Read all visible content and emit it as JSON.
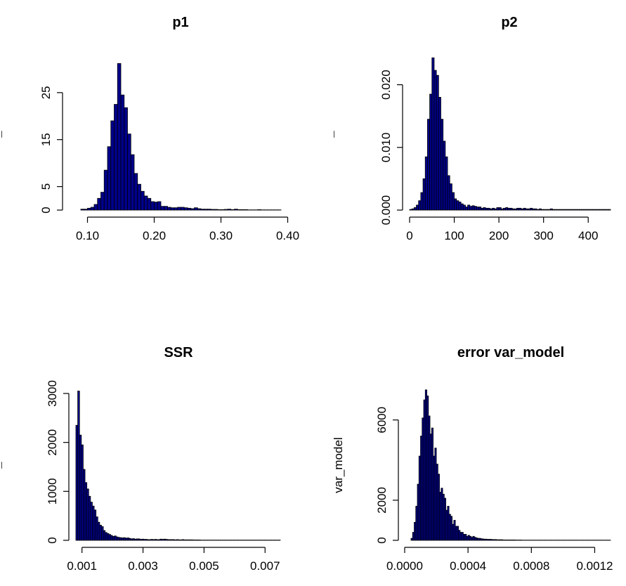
{
  "chart_data": [
    {
      "type": "bar",
      "title": "p1",
      "xlabel": "",
      "ylabel": "¯",
      "xlim": [
        0.09,
        0.39
      ],
      "ylim": [
        0,
        32
      ],
      "xticks": [
        0.1,
        0.2,
        0.3,
        0.4
      ],
      "xtick_labels": [
        "0.10",
        "0.20",
        "0.30",
        "0.40"
      ],
      "yticks": [
        0,
        5,
        15,
        25
      ],
      "ytick_labels": [
        "0",
        "5",
        "15",
        "25"
      ],
      "bin_start": 0.09,
      "bin_width": 0.005,
      "values": [
        0.2,
        0.2,
        0.4,
        0.6,
        1.2,
        2.5,
        3.8,
        8.5,
        13.5,
        19,
        22.5,
        31.2,
        24.5,
        21.8,
        16.2,
        11.8,
        7.8,
        5.5,
        4,
        3,
        2.5,
        1.8,
        1.7,
        1.8,
        0.8,
        0.8,
        0.6,
        0.5,
        0.5,
        0.6,
        0.6,
        0.5,
        0.4,
        0.3,
        0.5,
        0.3,
        0.2,
        0.2,
        0.2,
        0.15,
        0.15,
        0.1,
        0.1,
        0.15,
        0.2,
        0.1,
        0.2,
        0.1,
        0.1,
        0.1,
        0.05,
        0.05,
        0.05,
        0.1,
        0.05,
        0.05,
        0.05,
        0.05,
        0.05,
        0.05
      ]
    },
    {
      "type": "bar",
      "title": "p2",
      "xlabel": "",
      "ylabel": "¯",
      "xlim": [
        0,
        450
      ],
      "ylim": [
        0,
        0.025
      ],
      "xticks": [
        0,
        100,
        200,
        300,
        400
      ],
      "xtick_labels": [
        "0",
        "100",
        "200",
        "300",
        "400"
      ],
      "yticks": [
        0,
        0.01,
        0.02
      ],
      "ytick_labels": [
        "0.000",
        "0.010",
        "0.020"
      ],
      "bin_start": 0,
      "bin_width": 5,
      "values": [
        0.0001,
        0.0002,
        0.0004,
        0.0008,
        0.0015,
        0.0028,
        0.005,
        0.0085,
        0.0145,
        0.0185,
        0.0243,
        0.0223,
        0.0215,
        0.018,
        0.0145,
        0.011,
        0.0085,
        0.0055,
        0.0042,
        0.0028,
        0.0018,
        0.0015,
        0.0013,
        0.001,
        0.0008,
        0.0005,
        0.0008,
        0.0006,
        0.0007,
        0.0006,
        0.0005,
        0.0005,
        0.0003,
        0.0004,
        0.0003,
        0.0003,
        0.0002,
        0.0003,
        0.0002,
        0.0004,
        0.0004,
        0.0002,
        0.0003,
        0.0004,
        0.0003,
        0.0003,
        0.0002,
        0.0002,
        0.0003,
        0.0003,
        0.0002,
        0.0003,
        0.0002,
        0.0002,
        0.0003,
        0.0002,
        0.0002,
        0.0001,
        0.0002,
        0.0001,
        0.0001,
        0.0001,
        0.0001,
        0.0002,
        0.0001,
        0.0001,
        0.0001,
        0.0001,
        0.0001,
        0.0001,
        0.0001,
        0.0001,
        0.0001,
        0.0001,
        0.0001,
        0.0001,
        0.0001,
        0.0001,
        0.0001,
        0.0001,
        0.0001,
        0.0001,
        0.0001,
        0.0001,
        0.0001,
        0.0001,
        0.0001,
        0.0001,
        0.0001,
        0.0001
      ]
    },
    {
      "type": "bar",
      "title": "SSR",
      "xlabel": "",
      "ylabel": "¯",
      "xlim": [
        0.0008,
        0.0075
      ],
      "ylim": [
        0,
        3100
      ],
      "xticks": [
        0.001,
        0.003,
        0.005,
        0.007
      ],
      "xtick_labels": [
        "0.001",
        "0.003",
        "0.005",
        "0.007"
      ],
      "yticks": [
        0,
        1000,
        2000,
        3000
      ],
      "ytick_labels": [
        "0",
        "1000",
        "2000",
        "3000"
      ],
      "bin_start": 0.0008,
      "bin_width": 6e-05,
      "values": [
        2350,
        3050,
        2150,
        1950,
        1450,
        1180,
        1050,
        900,
        780,
        700,
        620,
        480,
        370,
        310,
        280,
        200,
        160,
        140,
        120,
        100,
        80,
        90,
        70,
        60,
        55,
        50,
        55,
        45,
        50,
        40,
        30,
        35,
        25,
        30,
        30,
        20,
        25,
        20,
        20,
        15,
        15,
        20,
        15,
        20,
        15,
        15,
        25,
        20,
        25,
        20,
        15,
        15,
        15,
        15,
        10,
        15,
        10,
        10,
        15,
        10,
        10,
        10,
        10,
        10,
        8,
        8,
        8,
        8,
        5,
        5,
        5,
        5,
        5,
        5,
        5,
        5,
        5,
        5,
        5,
        5,
        5,
        5,
        5,
        5,
        5,
        5,
        5,
        5,
        5,
        5,
        5,
        5,
        5,
        5,
        5,
        5,
        5,
        5,
        5,
        5,
        5,
        5,
        5,
        5,
        5,
        5,
        5,
        5,
        5,
        5,
        5,
        5
      ]
    },
    {
      "type": "bar",
      "title": "error var_model",
      "xlabel": "",
      "ylabel": "var_model",
      "xlim": [
        4e-05,
        0.0013
      ],
      "ylim": [
        0,
        7600
      ],
      "xticks": [
        0.0,
        0.0004,
        0.0008,
        0.0012
      ],
      "xtick_labels": [
        "0.0000",
        "0.0004",
        "0.0008",
        "0.0012"
      ],
      "yticks": [
        0,
        2000,
        6000
      ],
      "ytick_labels": [
        "0",
        "2000",
        "6000"
      ],
      "bin_start": 4e-05,
      "bin_width": 1e-05,
      "values": [
        100,
        400,
        900,
        1700,
        2800,
        4200,
        5200,
        6100,
        7000,
        7500,
        7200,
        6200,
        5300,
        5600,
        4200,
        4600,
        3800,
        3300,
        2400,
        2600,
        2300,
        2100,
        1500,
        1700,
        1300,
        1200,
        800,
        1000,
        700,
        700,
        500,
        400,
        400,
        300,
        300,
        200,
        250,
        200,
        150,
        200,
        150,
        120,
        100,
        100,
        80,
        70,
        60,
        60,
        50,
        50,
        50,
        40,
        40,
        40,
        30,
        30,
        30,
        30,
        20,
        20,
        20,
        20,
        20,
        20,
        20,
        20,
        15,
        15,
        15,
        15,
        10,
        10,
        10,
        10,
        10,
        10,
        10,
        10,
        10,
        10,
        10,
        10,
        10,
        10,
        10,
        10,
        10,
        10,
        10,
        10,
        10,
        10,
        10,
        10,
        10,
        10,
        10,
        10,
        10,
        10,
        10,
        10,
        10,
        10,
        10,
        10,
        10,
        10,
        10,
        10,
        10,
        10,
        10,
        10,
        10,
        10,
        10,
        10,
        10,
        10,
        10,
        10,
        10,
        10,
        10,
        10
      ]
    }
  ],
  "colors": {
    "bar_fill": "#00008b",
    "bar_border": "#000000",
    "background": "#ffffff"
  }
}
